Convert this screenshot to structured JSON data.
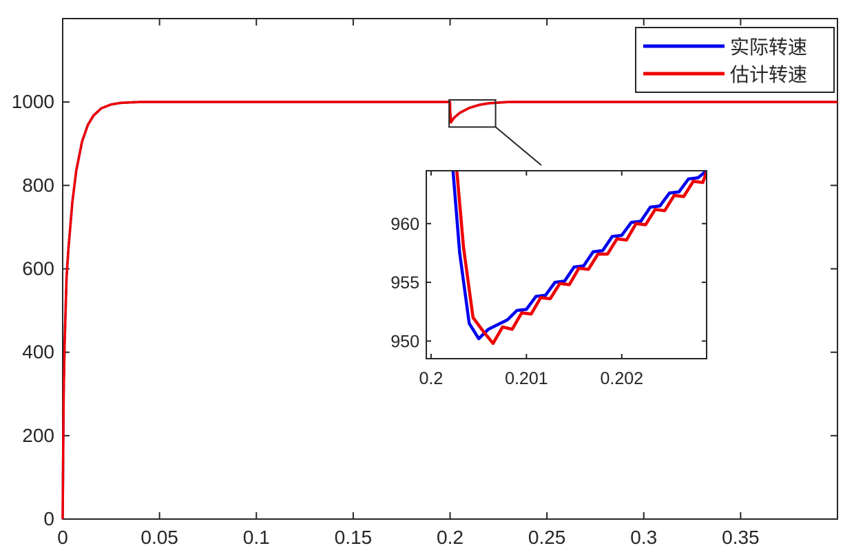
{
  "chart_data": [
    {
      "type": "line",
      "title": "",
      "xlabel": "",
      "ylabel": "",
      "xlim": [
        0,
        0.4
      ],
      "ylim": [
        0,
        1200
      ],
      "x_ticks": [
        0,
        0.05,
        0.1,
        0.15,
        0.2,
        0.25,
        0.3,
        0.35
      ],
      "x_tick_labels": [
        "0",
        "0.05",
        "0.1",
        "0.15",
        "0.2",
        "0.25",
        "0.3",
        "0.35"
      ],
      "y_ticks": [
        0,
        200,
        400,
        600,
        800,
        1000
      ],
      "y_tick_labels": [
        "0",
        "200",
        "400",
        "600",
        "800",
        "1000"
      ],
      "grid": false,
      "legend_position": "top-right",
      "series": [
        {
          "name": "实际转速",
          "color": "#0000ee",
          "x": [
            0,
            0.0005,
            0.001,
            0.002,
            0.003,
            0.005,
            0.007,
            0.01,
            0.013,
            0.016,
            0.02,
            0.025,
            0.03,
            0.035,
            0.04,
            0.05,
            0.1,
            0.15,
            0.19,
            0.19995,
            0.2,
            0.2005,
            0.202,
            0.205,
            0.21,
            0.215,
            0.22,
            0.23,
            0.3,
            0.4
          ],
          "y": [
            0,
            300,
            420,
            580,
            650,
            760,
            835,
            905,
            945,
            968,
            985,
            994,
            998,
            999,
            1000,
            1000,
            1000,
            1000,
            1000,
            1000,
            980,
            952,
            962,
            974,
            986,
            993,
            997,
            1000,
            1000,
            1000
          ]
        },
        {
          "name": "估计转速",
          "color": "#ee0000",
          "x": [
            0,
            0.0005,
            0.001,
            0.002,
            0.003,
            0.005,
            0.007,
            0.01,
            0.013,
            0.016,
            0.02,
            0.025,
            0.03,
            0.035,
            0.04,
            0.05,
            0.1,
            0.15,
            0.19,
            0.19995,
            0.2,
            0.2005,
            0.202,
            0.205,
            0.21,
            0.215,
            0.22,
            0.23,
            0.3,
            0.4
          ],
          "y": [
            0,
            300,
            420,
            580,
            650,
            760,
            835,
            905,
            945,
            968,
            985,
            994,
            998,
            999,
            1000,
            1000,
            1000,
            1000,
            1000,
            1000,
            980,
            951,
            962,
            974,
            986,
            993,
            997,
            1000,
            1000,
            1000
          ]
        }
      ],
      "zoom_box": {
        "xlim": [
          0.1995,
          0.2235
        ],
        "ylim": [
          940,
          1005
        ]
      }
    },
    {
      "type": "line",
      "title": "",
      "xlabel": "",
      "ylabel": "",
      "xlim": [
        0.19995,
        0.20289
      ],
      "ylim": [
        948.5,
        964.5
      ],
      "x_ticks": [
        0.2,
        0.201,
        0.202
      ],
      "x_tick_labels": [
        "0.2",
        "0.201",
        "0.202"
      ],
      "y_ticks": [
        950,
        955,
        960
      ],
      "y_tick_labels": [
        "950",
        "955",
        "960"
      ],
      "grid": false,
      "series": [
        {
          "name": "实际转速",
          "color": "#0000ee",
          "x": [
            0.20023,
            0.2003,
            0.2004,
            0.2005,
            0.2006,
            0.2007,
            0.2008,
            0.2009,
            0.201,
            0.2011,
            0.2012,
            0.2013,
            0.2014,
            0.2015,
            0.2016,
            0.2017,
            0.2018,
            0.2019,
            0.202,
            0.2021,
            0.2022,
            0.2023,
            0.2024,
            0.2025,
            0.2026,
            0.2027,
            0.2028,
            0.20289
          ],
          "y": [
            964.5,
            957.5,
            951.5,
            950.2,
            951.0,
            951.4,
            951.8,
            952.6,
            952.7,
            953.8,
            953.9,
            955.0,
            955.1,
            956.3,
            956.4,
            957.6,
            957.7,
            958.9,
            959.0,
            960.1,
            960.2,
            961.4,
            961.5,
            962.6,
            962.7,
            963.8,
            963.9,
            964.5
          ]
        },
        {
          "name": "估计转速",
          "color": "#ee0000",
          "x": [
            0.20027,
            0.20034,
            0.20044,
            0.20055,
            0.20065,
            0.20075,
            0.20085,
            0.20095,
            0.20105,
            0.20115,
            0.20125,
            0.20135,
            0.20145,
            0.20155,
            0.20165,
            0.20175,
            0.20185,
            0.20195,
            0.20205,
            0.20215,
            0.20225,
            0.20235,
            0.20245,
            0.20255,
            0.20265,
            0.20275,
            0.20285,
            0.20289
          ],
          "y": [
            964.5,
            958.0,
            952.0,
            950.8,
            949.8,
            951.2,
            951.0,
            952.4,
            952.3,
            953.7,
            953.6,
            954.9,
            954.8,
            956.2,
            956.1,
            957.4,
            957.4,
            958.7,
            958.6,
            960.0,
            959.9,
            961.2,
            961.1,
            962.4,
            962.3,
            963.6,
            963.5,
            964.4
          ]
        }
      ]
    }
  ]
}
